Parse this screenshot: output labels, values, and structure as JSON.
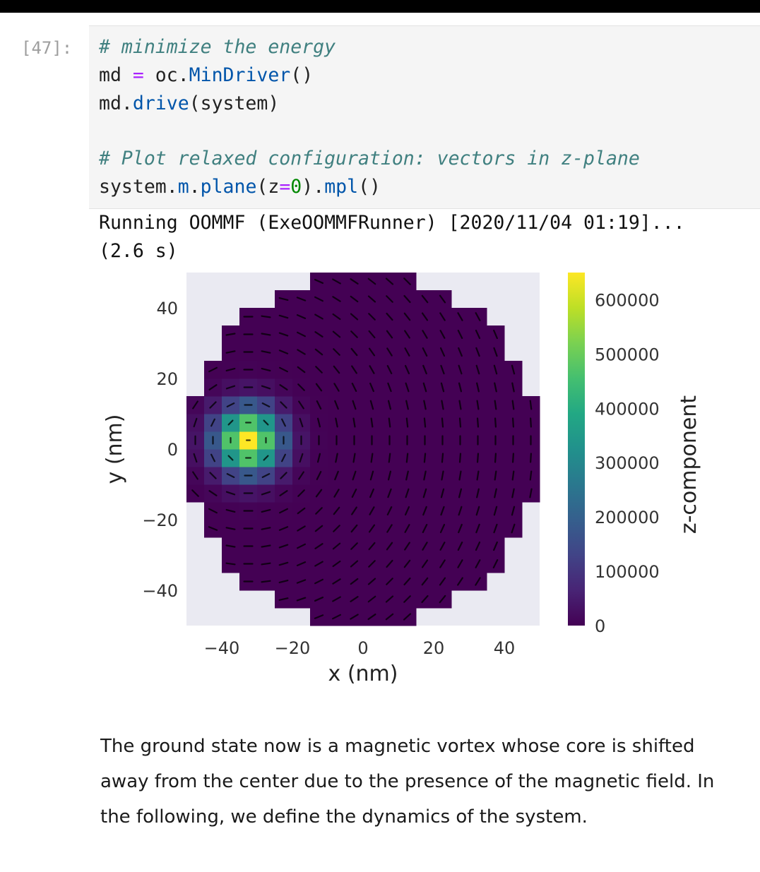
{
  "cell": {
    "prompt": "[47]:",
    "code": {
      "comment1": "# minimize the energy",
      "line2_var": "md",
      "line2_eq": " = ",
      "line2_obj": "oc.",
      "line2_fn": "MinDriver",
      "line2_end": "()",
      "line3_obj": "md.",
      "line3_fn": "drive",
      "line3_end": "(system)",
      "comment2": "# Plot relaxed configuration: vectors in z-plane",
      "line6_obj": "system.",
      "line6_m": "m",
      "line6_dot1": ".",
      "line6_plane": "plane",
      "line6_open": "(z",
      "line6_eq": "=",
      "line6_zero": "0",
      "line6_close": ").",
      "line6_mpl": "mpl",
      "line6_end": "()"
    },
    "output_lines": [
      "Running OOMMF (ExeOOMMFRunner) [2020/11/04 01:19]...",
      "(2.6 s)"
    ]
  },
  "chart_data": {
    "type": "heatmap",
    "xlabel": "x (nm)",
    "ylabel": "y (nm)",
    "xlim": [
      -50,
      50
    ],
    "ylim": [
      -50,
      50
    ],
    "x_ticks": [
      "−40",
      "−20",
      "0",
      "20",
      "40"
    ],
    "y_ticks": [
      "40",
      "20",
      "0",
      "−20",
      "−40"
    ],
    "colorbar": {
      "label": "z-component",
      "ticks": [
        "600000",
        "500000",
        "400000",
        "300000",
        "200000",
        "100000",
        "0"
      ],
      "range": [
        0,
        650000
      ],
      "colormap": "viridis"
    },
    "description_values": {
      "disk_diameter_nm": 100,
      "cell_size_nm": 5,
      "vortex_core_center_nm": [
        -32.5,
        2.5
      ],
      "core_peak_z": 650000,
      "background_z": 0
    },
    "colors": {
      "plot_bg": "#eaeaf2",
      "low": "#440154",
      "high": "#fde725"
    }
  },
  "markdown": {
    "text": "The ground state now is a magnetic vortex whose core is shifted away from the center due to the presence of the magnetic field. In the following, we define the dynamics of the system."
  }
}
